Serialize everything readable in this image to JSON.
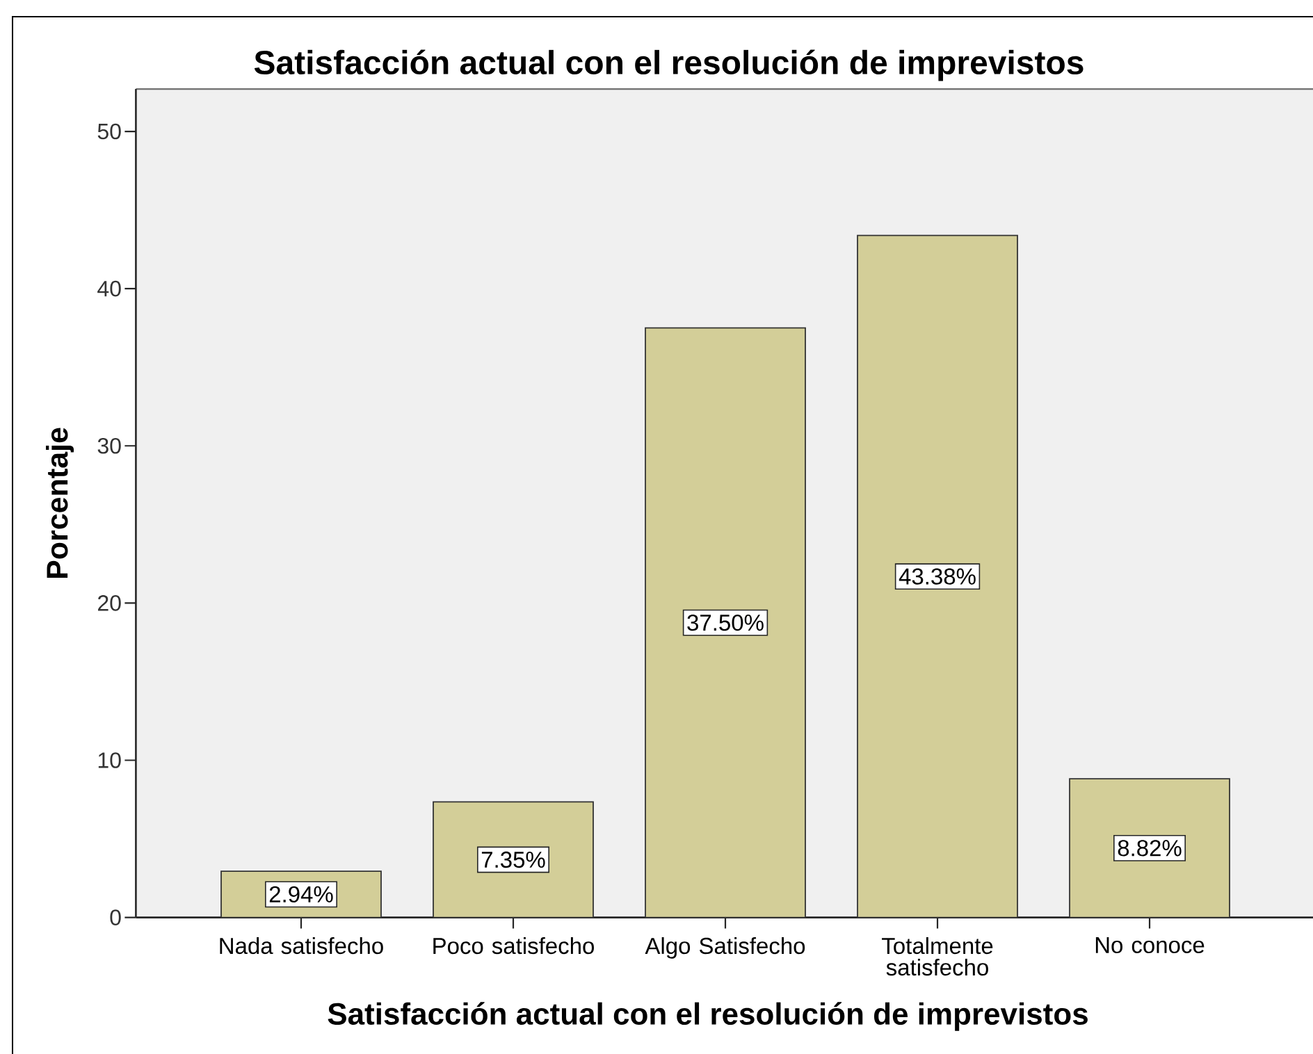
{
  "chart_data": {
    "type": "bar",
    "title": "Satisfacción actual con el resolución de imprevistos",
    "xlabel": "Satisfacción actual con el resolución de imprevistos",
    "ylabel": "Porcentaje",
    "categories": [
      "Nada satisfecho",
      "Poco satisfecho",
      "Algo Satisfecho",
      "Totalmente satisfecho",
      "No conoce"
    ],
    "values": [
      2.94,
      7.35,
      37.5,
      43.38,
      8.82
    ],
    "color": "#d3ce98",
    "value_labels": [
      "2.94%",
      "7.35%",
      "37.50%",
      "43.38%",
      "8.82%"
    ],
    "ylim": [
      0,
      52.7
    ],
    "yticks": [
      0,
      10,
      20,
      30,
      40,
      50
    ]
  }
}
